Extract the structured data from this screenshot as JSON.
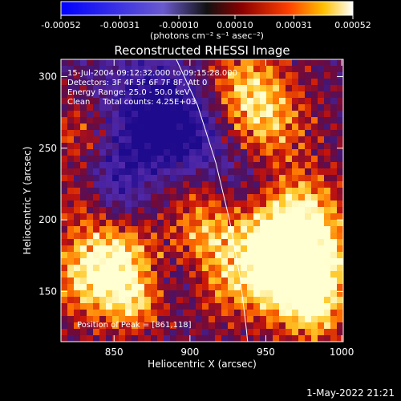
{
  "chart_data": {
    "type": "heatmap",
    "title": "Reconstructed RHESSI Image",
    "xlabel": "Heliocentric X (arcsec)",
    "ylabel": "Heliocentric Y (arcsec)",
    "xlim": [
      815,
      1001
    ],
    "ylim": [
      115,
      312
    ],
    "xticks": [
      850,
      900,
      950,
      1000
    ],
    "yticks": [
      150,
      200,
      250,
      300
    ],
    "colorbar": {
      "min": -0.00052,
      "max": 0.00052,
      "ticks": [
        "-0.00052",
        "-0.00031",
        "-0.00010",
        "0.00010",
        "0.00031",
        "0.00052"
      ],
      "tick_values": [
        -0.00052,
        -0.00031,
        -0.0001,
        0.0001,
        0.00031,
        0.00052
      ],
      "unit_label": "(photons cm⁻² s⁻¹ asec⁻²)"
    },
    "annotations": [
      "15-Jul-2004 09:12:32.000 to 09:15:28.000",
      "Detectors: 3F 4F 5F 6F 7F 8F, Att 0",
      "Energy Range: 25.0 - 50.0 keV",
      "Clean     Total counts: 4.25E+03"
    ],
    "peak_label": "Position of Peak = [861,118]",
    "peak": [
      861,
      118
    ],
    "limb": [
      [
        891,
        312
      ],
      [
        905,
        280
      ],
      [
        917,
        240
      ],
      [
        926,
        200
      ],
      [
        933,
        160
      ],
      [
        937,
        125
      ],
      [
        938,
        115
      ]
    ],
    "limb_color": "#ffffff"
  },
  "footer": {
    "date": "1-May-2022 21:21"
  }
}
